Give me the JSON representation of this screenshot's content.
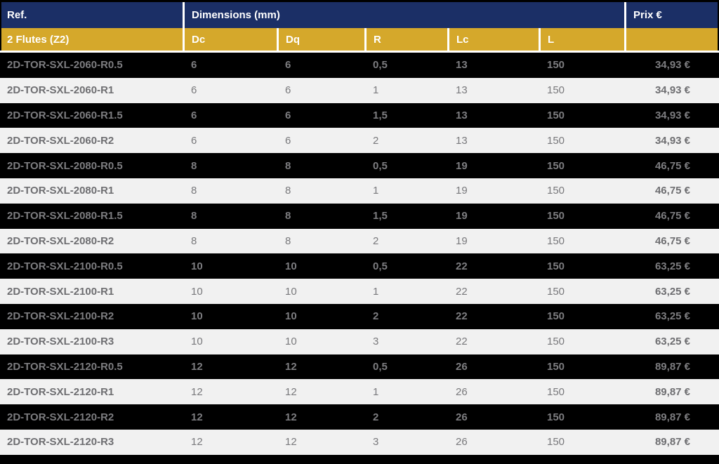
{
  "colors": {
    "header_blue": "#1b2f66",
    "subheader_gold": "#d5a82b",
    "row_dark_bg": "#000000",
    "row_light_bg": "#f1f1f1",
    "row_dark_text": "#7d7d80",
    "row_light_text": "#6e6e71",
    "header_text": "#ffffff"
  },
  "table": {
    "header": {
      "ref": "Ref.",
      "dimensions": "Dimensions (mm)",
      "prix": "Prix €"
    },
    "subheader": {
      "flutes": "2 Flutes (Z2)",
      "dc": "Dc",
      "dq": "Dq",
      "r": "R",
      "lc": "Lc",
      "l": "L",
      "prix_spacer": ""
    },
    "rows": [
      {
        "ref": "2D-TOR-SXL-2060-R0.5",
        "dc": "6",
        "dq": "6",
        "r": "0,5",
        "lc": "13",
        "l": "150",
        "prix": "34,93 €",
        "variant": "dark"
      },
      {
        "ref": "2D-TOR-SXL-2060-R1",
        "dc": "6",
        "dq": "6",
        "r": "1",
        "lc": "13",
        "l": "150",
        "prix": "34,93 €",
        "variant": "light"
      },
      {
        "ref": "2D-TOR-SXL-2060-R1.5",
        "dc": "6",
        "dq": "6",
        "r": "1,5",
        "lc": "13",
        "l": "150",
        "prix": "34,93 €",
        "variant": "dark"
      },
      {
        "ref": "2D-TOR-SXL-2060-R2",
        "dc": "6",
        "dq": "6",
        "r": "2",
        "lc": "13",
        "l": "150",
        "prix": "34,93 €",
        "variant": "light"
      },
      {
        "ref": "2D-TOR-SXL-2080-R0.5",
        "dc": "8",
        "dq": "8",
        "r": "0,5",
        "lc": "19",
        "l": "150",
        "prix": "46,75 €",
        "variant": "dark"
      },
      {
        "ref": "2D-TOR-SXL-2080-R1",
        "dc": "8",
        "dq": "8",
        "r": "1",
        "lc": "19",
        "l": "150",
        "prix": "46,75 €",
        "variant": "light"
      },
      {
        "ref": "2D-TOR-SXL-2080-R1.5",
        "dc": "8",
        "dq": "8",
        "r": "1,5",
        "lc": "19",
        "l": "150",
        "prix": "46,75 €",
        "variant": "dark"
      },
      {
        "ref": "2D-TOR-SXL-2080-R2",
        "dc": "8",
        "dq": "8",
        "r": "2",
        "lc": "19",
        "l": "150",
        "prix": "46,75 €",
        "variant": "light"
      },
      {
        "ref": "2D-TOR-SXL-2100-R0.5",
        "dc": "10",
        "dq": "10",
        "r": "0,5",
        "lc": "22",
        "l": "150",
        "prix": "63,25 €",
        "variant": "dark"
      },
      {
        "ref": "2D-TOR-SXL-2100-R1",
        "dc": "10",
        "dq": "10",
        "r": "1",
        "lc": "22",
        "l": "150",
        "prix": "63,25 €",
        "variant": "light"
      },
      {
        "ref": "2D-TOR-SXL-2100-R2",
        "dc": "10",
        "dq": "10",
        "r": "2",
        "lc": "22",
        "l": "150",
        "prix": "63,25 €",
        "variant": "dark"
      },
      {
        "ref": "2D-TOR-SXL-2100-R3",
        "dc": "10",
        "dq": "10",
        "r": "3",
        "lc": "22",
        "l": "150",
        "prix": "63,25 €",
        "variant": "light"
      },
      {
        "ref": "2D-TOR-SXL-2120-R0.5",
        "dc": "12",
        "dq": "12",
        "r": "0,5",
        "lc": "26",
        "l": "150",
        "prix": "89,87 €",
        "variant": "dark"
      },
      {
        "ref": "2D-TOR-SXL-2120-R1",
        "dc": "12",
        "dq": "12",
        "r": "1",
        "lc": "26",
        "l": "150",
        "prix": "89,87 €",
        "variant": "light"
      },
      {
        "ref": "2D-TOR-SXL-2120-R2",
        "dc": "12",
        "dq": "12",
        "r": "2",
        "lc": "26",
        "l": "150",
        "prix": "89,87 €",
        "variant": "dark"
      },
      {
        "ref": "2D-TOR-SXL-2120-R3",
        "dc": "12",
        "dq": "12",
        "r": "3",
        "lc": "26",
        "l": "150",
        "prix": "89,87 €",
        "variant": "light"
      }
    ]
  }
}
